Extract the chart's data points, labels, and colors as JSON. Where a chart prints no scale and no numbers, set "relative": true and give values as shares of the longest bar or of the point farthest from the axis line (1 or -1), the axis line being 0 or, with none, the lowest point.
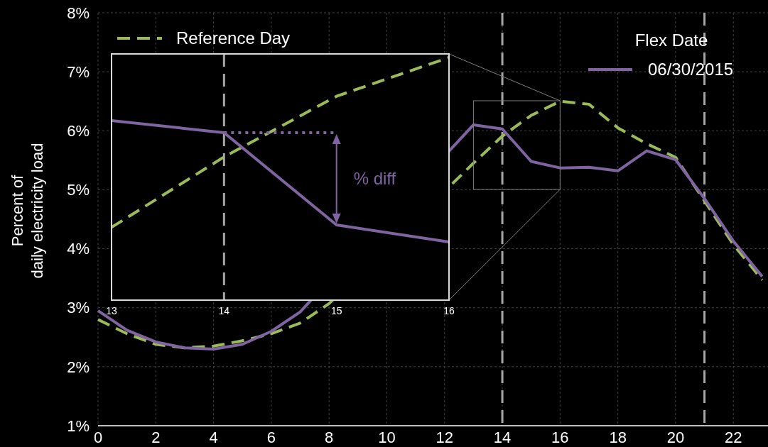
{
  "chart_data": [
    {
      "type": "line",
      "ylabel": "Percent of\ndaily electricity load",
      "legend_title": "Flex Date",
      "legend": "top",
      "series": [
        {
          "name": "Reference Day",
          "color": "#9bbb59",
          "line_style": "dashed",
          "x": [
            0,
            1,
            2,
            3,
            4,
            5,
            6,
            7,
            8,
            13,
            14,
            15,
            16,
            17,
            18,
            19,
            20,
            21,
            22,
            23
          ],
          "values": [
            2.8,
            2.56,
            2.38,
            2.32,
            2.35,
            2.44,
            2.56,
            2.74,
            3.07,
            5.45,
            5.91,
            6.26,
            6.5,
            6.45,
            6.05,
            5.78,
            5.55,
            4.81,
            4.07,
            3.47
          ]
        },
        {
          "name": "06/30/2015",
          "color": "#8064a2",
          "line_style": "solid",
          "x": [
            0,
            1,
            2,
            3,
            4,
            5,
            6,
            7,
            13,
            14,
            15,
            16,
            17,
            18,
            19,
            20,
            21,
            22,
            23
          ],
          "values": [
            2.95,
            2.62,
            2.42,
            2.32,
            2.3,
            2.38,
            2.6,
            2.93,
            6.1,
            6.03,
            5.48,
            5.37,
            5.38,
            5.32,
            5.66,
            5.51,
            4.85,
            4.13,
            3.53
          ]
        }
      ],
      "xlim": [
        0,
        23.2
      ],
      "ylim": [
        1,
        8
      ],
      "xticks": [
        0,
        2,
        4,
        6,
        8,
        10,
        12,
        14,
        16,
        18,
        20,
        22
      ],
      "yticks": [
        {
          "value": 1,
          "label": "1%"
        },
        {
          "value": 2,
          "label": "2%"
        },
        {
          "value": 3,
          "label": "3%"
        },
        {
          "value": 4,
          "label": "4%"
        },
        {
          "value": 5,
          "label": "5%"
        },
        {
          "value": 6,
          "label": "6%"
        },
        {
          "value": 7,
          "label": "7%"
        },
        {
          "value": 8,
          "label": "8%"
        }
      ],
      "grid": true,
      "ref_lines": [
        {
          "axis": "x",
          "value": 14,
          "color": "#a6a6a6",
          "line_style": "dashed"
        },
        {
          "axis": "x",
          "value": 21,
          "color": "#a6a6a6",
          "line_style": "dashed"
        }
      ]
    },
    {
      "type": "line",
      "x": [
        13,
        14,
        15,
        16
      ],
      "relative": true,
      "series": [
        {
          "color": "#9bbb59",
          "line_style": "dashed",
          "values": [
            0.3,
            0.59,
            0.84,
            1
          ]
        },
        {
          "color": "#8064a2",
          "line_style": "solid",
          "values": [
            0.74,
            0.69,
            0.31,
            0.24
          ]
        }
      ],
      "xlim": [
        13,
        16
      ],
      "xticks": [
        13,
        14,
        15,
        16
      ],
      "tick_labels": "x",
      "ref_lines": [
        {
          "axis": "x",
          "value": 14,
          "color": "#a6a6a6",
          "line_style": "dashed"
        }
      ],
      "annotations": [
        "% diff"
      ]
    }
  ]
}
